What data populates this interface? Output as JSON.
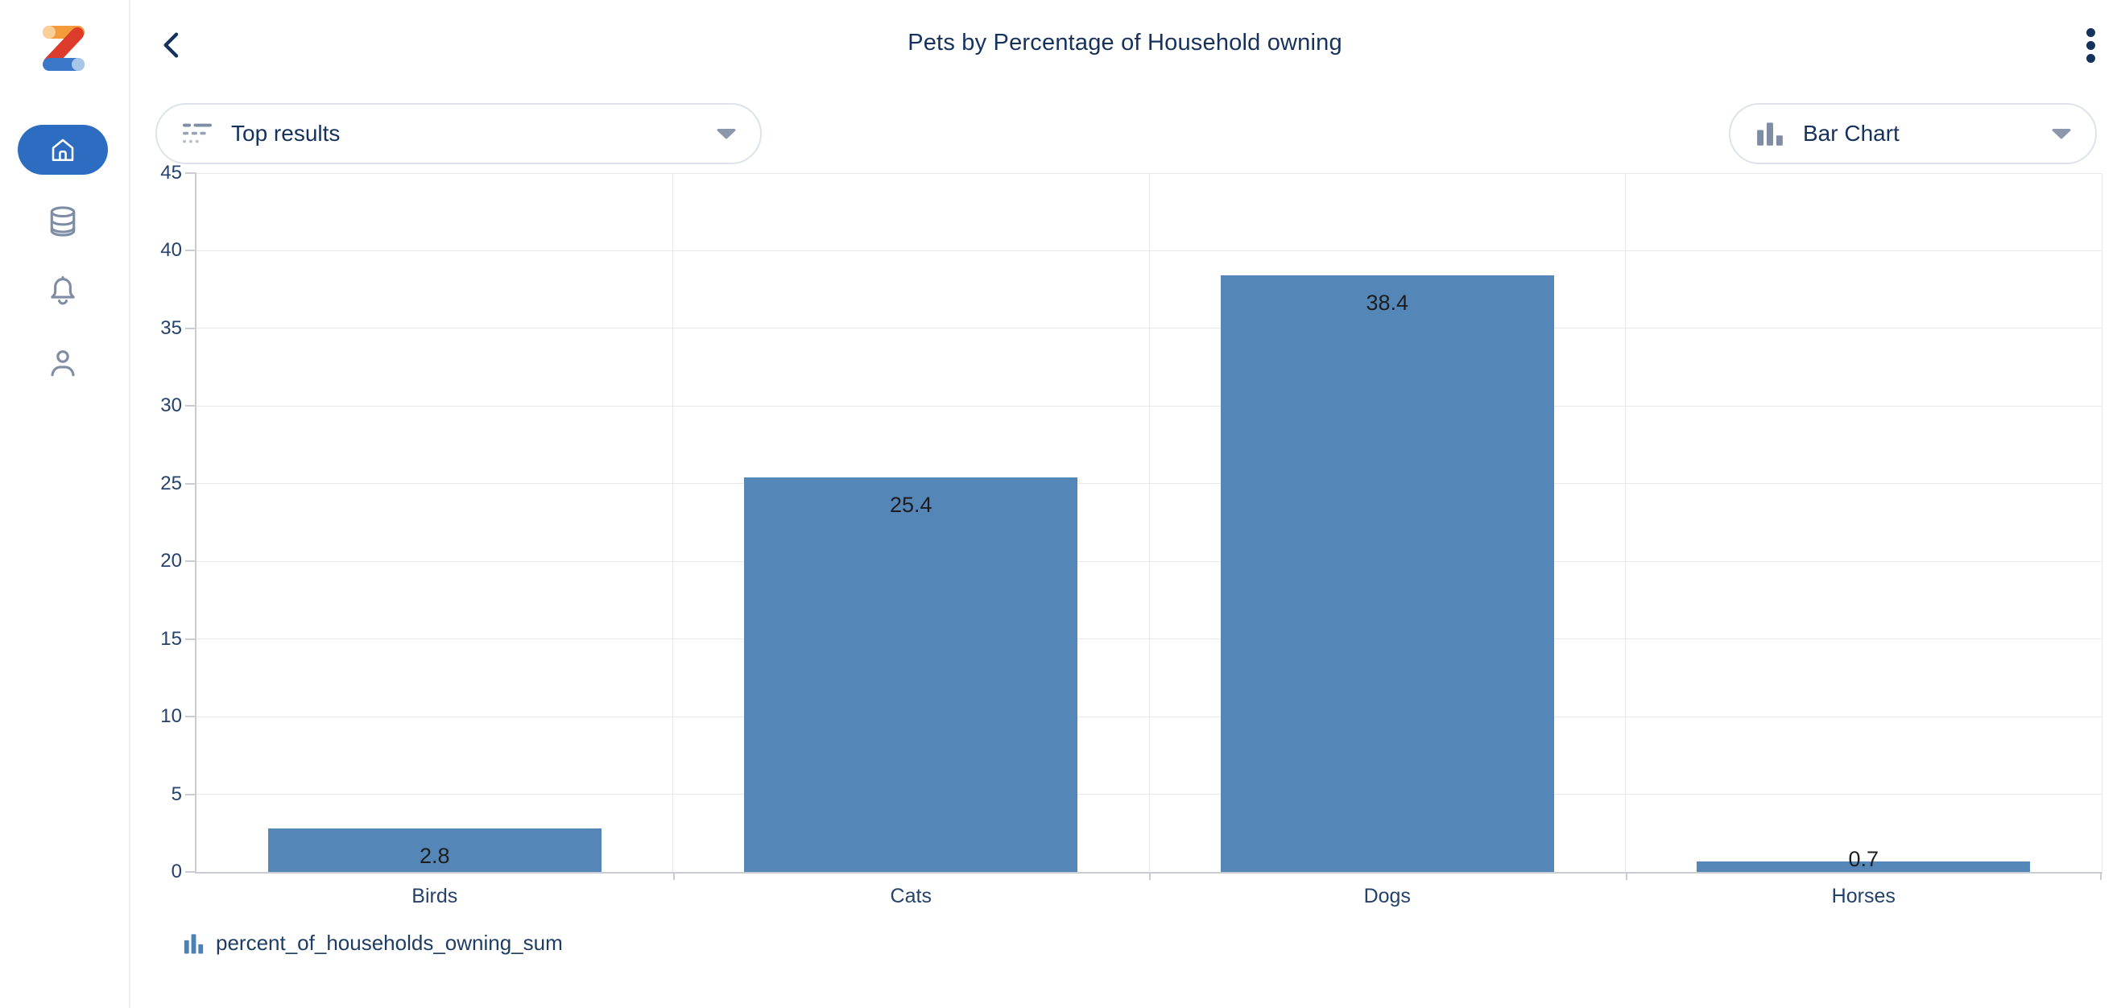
{
  "sidebar": {
    "logo": "zoho-z-logo",
    "items": [
      {
        "icon": "home-icon",
        "selected": true
      },
      {
        "icon": "database-icon",
        "selected": false
      },
      {
        "icon": "bell-icon",
        "selected": false
      },
      {
        "icon": "profile-icon",
        "selected": false
      }
    ]
  },
  "header": {
    "title": "Pets by Percentage of Household owning",
    "back_icon": "back-chevron-icon",
    "menu_icon": "kebab-menu-icon"
  },
  "toolbar": {
    "results_dropdown": {
      "icon": "top-results-icon",
      "label": "Top results",
      "caret": "chevron-down-icon"
    },
    "chart_type_dropdown": {
      "icon": "bar-chart-icon",
      "label": "Bar Chart",
      "caret": "chevron-down-icon"
    }
  },
  "chart_data": {
    "type": "bar",
    "title": "Pets by Percentage of Household owning",
    "categories": [
      "Birds",
      "Cats",
      "Dogs",
      "Horses"
    ],
    "values": [
      2.8,
      25.4,
      38.4,
      0.7
    ],
    "series_name": "percent_of_households_owning_sum",
    "xlabel": "",
    "ylabel": "",
    "ylim": [
      0,
      45
    ],
    "ytick_step": 5,
    "grid": true,
    "value_labels": true,
    "legend_position": "bottom-left",
    "bar_color": "#5586b8"
  },
  "legend": {
    "icon": "bar-chart-icon",
    "label": "percent_of_households_owning_sum"
  },
  "colors": {
    "bar": "#5586b8",
    "accent_blue": "#2d6dc1",
    "navy_text": "#16325c",
    "icon_gray": "#7e8da3",
    "gridline": "#e9e9e9",
    "axis": "#c9ccd2"
  }
}
